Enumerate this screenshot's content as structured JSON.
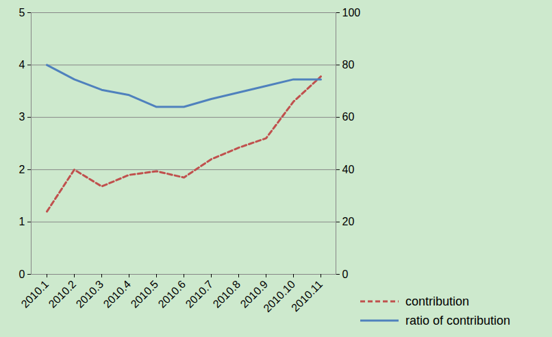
{
  "chart_data": {
    "type": "line",
    "categories": [
      "2010.1",
      "2010.2",
      "2010.3",
      "2010.4",
      "2010.5",
      "2010.6",
      "2010.7",
      "2010.8",
      "2010.9",
      "2010.10",
      "2010.11"
    ],
    "series": [
      {
        "name": "contribution",
        "color": "#c0504d",
        "line_style": "dashed",
        "values": [
          1.2,
          2.0,
          1.68,
          1.9,
          1.97,
          1.85,
          2.2,
          2.42,
          2.6,
          3.3,
          3.78
        ]
      },
      {
        "name": "ratio of contribution",
        "color": "#4f81bd",
        "line_style": "solid",
        "axis": "y2",
        "values": [
          80,
          74.5,
          70.5,
          68.5,
          64,
          64,
          67,
          69.5,
          72,
          74.5,
          74.5
        ]
      }
    ],
    "ylim": [
      0,
      5
    ],
    "yticks": [
      0,
      1,
      2,
      3,
      4,
      5
    ],
    "y2lim": [
      0,
      100
    ],
    "y2ticks": [
      0,
      20,
      40,
      60,
      80,
      100
    ],
    "grid": true,
    "legend": "right"
  }
}
